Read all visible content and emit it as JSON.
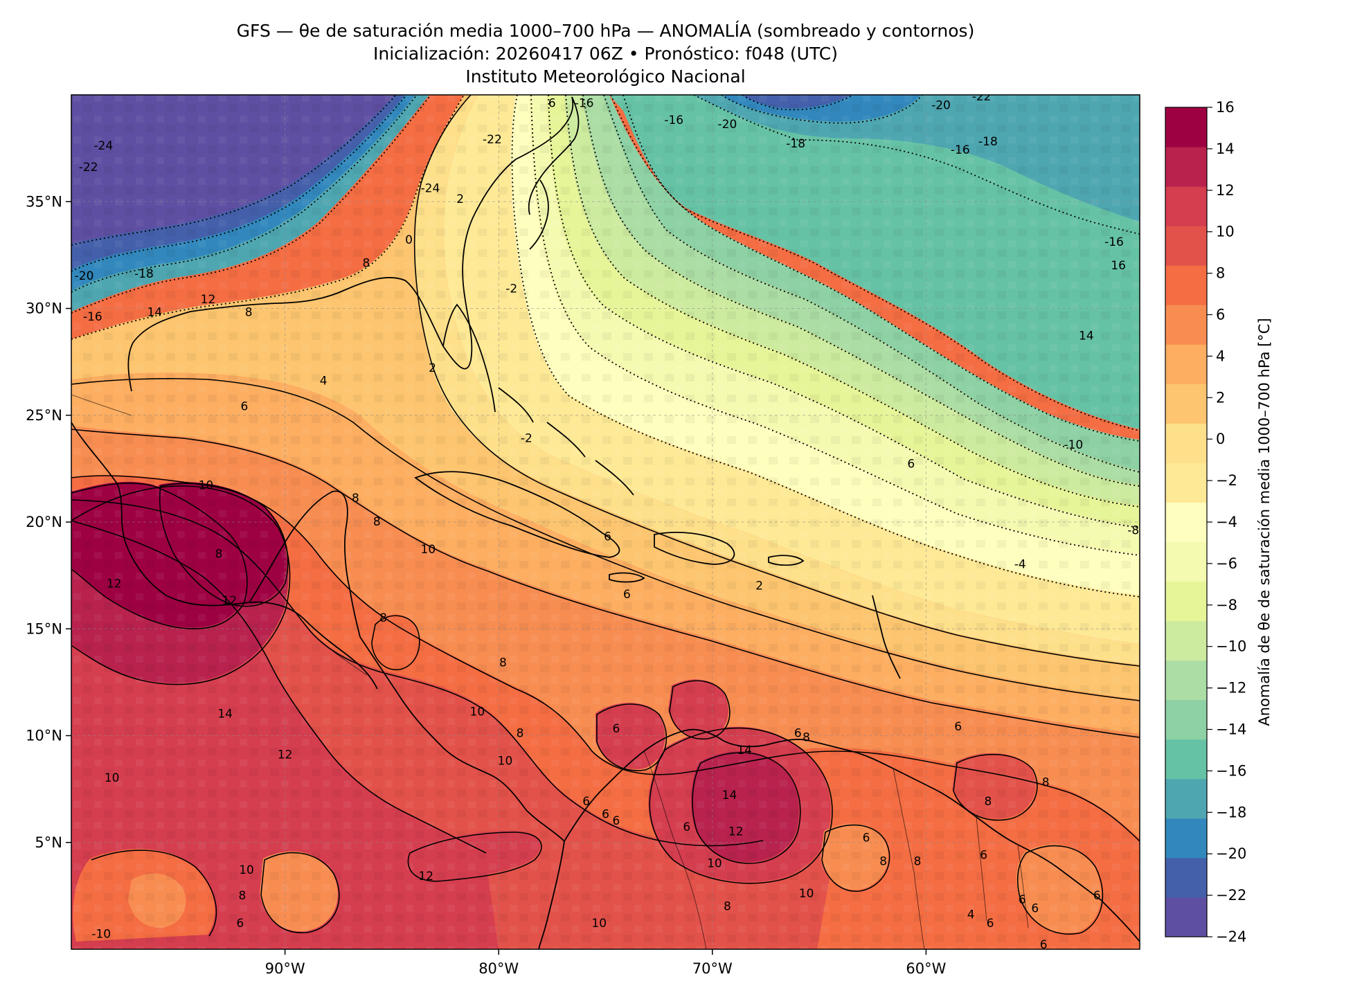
{
  "title": {
    "line1": "GFS — θe de saturación media 1000–700 hPa — ANOMALÍA (sombreado y contornos)",
    "line2": "Inicialización: 20260417 06Z   •   Pronóstico: f048 (UTC)",
    "line3": "Instituto Meteorológico Nacional"
  },
  "map": {
    "lon_range": [
      -100,
      -50
    ],
    "lat_range": [
      0,
      40
    ],
    "lon_ticks": [
      {
        "value": -90,
        "label": "90°W"
      },
      {
        "value": -80,
        "label": "80°W"
      },
      {
        "value": -70,
        "label": "70°W"
      },
      {
        "value": -60,
        "label": "60°W"
      }
    ],
    "lat_ticks": [
      {
        "value": 35,
        "label": "35°N"
      },
      {
        "value": 30,
        "label": "30°N"
      },
      {
        "value": 25,
        "label": "25°N"
      },
      {
        "value": 20,
        "label": "20°N"
      },
      {
        "value": 15,
        "label": "15°N"
      },
      {
        "value": 10,
        "label": "10°N"
      },
      {
        "value": 5,
        "label": "5°N"
      }
    ],
    "gridlines": "dashed",
    "field": "anomaly of mean saturation θe 1000–700 hPa",
    "contour_style": "solid for positive, dotted for negative",
    "contour_labels": [
      {
        "lon": -76,
        "lat": 39.6,
        "text": "-16"
      },
      {
        "lon": -80.3,
        "lat": 37.9,
        "text": "-22"
      },
      {
        "lon": -83.2,
        "lat": 35.6,
        "text": "-24"
      },
      {
        "lon": -98.5,
        "lat": 37.6,
        "text": "-24"
      },
      {
        "lon": -99.2,
        "lat": 36.6,
        "text": "-22"
      },
      {
        "lon": -99.4,
        "lat": 31.5,
        "text": "-20"
      },
      {
        "lon": -96.6,
        "lat": 31.6,
        "text": "-18"
      },
      {
        "lon": -99.0,
        "lat": 29.6,
        "text": "-16"
      },
      {
        "lon": -96.1,
        "lat": 29.8,
        "text": "14"
      },
      {
        "lon": -93.6,
        "lat": 30.4,
        "text": "12"
      },
      {
        "lon": -91.7,
        "lat": 29.8,
        "text": "8"
      },
      {
        "lon": -86.2,
        "lat": 32.1,
        "text": "8"
      },
      {
        "lon": -84.2,
        "lat": 33.2,
        "text": "0"
      },
      {
        "lon": -81.8,
        "lat": 35.1,
        "text": "2"
      },
      {
        "lon": -79.4,
        "lat": 30.9,
        "text": "-2"
      },
      {
        "lon": -83.1,
        "lat": 27.2,
        "text": "2"
      },
      {
        "lon": -88.2,
        "lat": 26.6,
        "text": "4"
      },
      {
        "lon": -91.9,
        "lat": 25.4,
        "text": "6"
      },
      {
        "lon": -93.7,
        "lat": 21.7,
        "text": "10"
      },
      {
        "lon": -86.7,
        "lat": 21.1,
        "text": "8"
      },
      {
        "lon": -85.7,
        "lat": 20.0,
        "text": "8"
      },
      {
        "lon": -83.3,
        "lat": 18.7,
        "text": "10"
      },
      {
        "lon": -93.1,
        "lat": 18.5,
        "text": "8"
      },
      {
        "lon": -98.0,
        "lat": 17.1,
        "text": "12"
      },
      {
        "lon": -92.6,
        "lat": 16.3,
        "text": "12"
      },
      {
        "lon": -85.4,
        "lat": 15.5,
        "text": "8"
      },
      {
        "lon": -79.8,
        "lat": 13.4,
        "text": "8"
      },
      {
        "lon": -92.8,
        "lat": 11.0,
        "text": "14"
      },
      {
        "lon": -90.0,
        "lat": 9.1,
        "text": "12"
      },
      {
        "lon": -81.0,
        "lat": 11.1,
        "text": "10"
      },
      {
        "lon": -98.1,
        "lat": 8.0,
        "text": "10"
      },
      {
        "lon": -79.7,
        "lat": 8.8,
        "text": "10"
      },
      {
        "lon": -79.0,
        "lat": 10.1,
        "text": "8"
      },
      {
        "lon": -91.8,
        "lat": 3.7,
        "text": "10"
      },
      {
        "lon": -92.0,
        "lat": 2.5,
        "text": "8"
      },
      {
        "lon": -83.4,
        "lat": 3.4,
        "text": "12"
      },
      {
        "lon": -92.1,
        "lat": 1.2,
        "text": "6"
      },
      {
        "lon": -98.6,
        "lat": 0.7,
        "text": "-10"
      },
      {
        "lon": -74.9,
        "lat": 19.3,
        "text": "6"
      },
      {
        "lon": -74.0,
        "lat": 16.6,
        "text": "6"
      },
      {
        "lon": -74.5,
        "lat": 10.3,
        "text": "6"
      },
      {
        "lon": -68.5,
        "lat": 9.3,
        "text": "14"
      },
      {
        "lon": -69.2,
        "lat": 7.2,
        "text": "14"
      },
      {
        "lon": -68.9,
        "lat": 5.5,
        "text": "12"
      },
      {
        "lon": -69.9,
        "lat": 4.0,
        "text": "10"
      },
      {
        "lon": -71.2,
        "lat": 5.7,
        "text": "6"
      },
      {
        "lon": -75.9,
        "lat": 6.9,
        "text": "6"
      },
      {
        "lon": -75.0,
        "lat": 6.3,
        "text": "6"
      },
      {
        "lon": -74.5,
        "lat": 6.0,
        "text": "6"
      },
      {
        "lon": -65.6,
        "lat": 2.6,
        "text": "10"
      },
      {
        "lon": -66.0,
        "lat": 10.1,
        "text": "6"
      },
      {
        "lon": -65.6,
        "lat": 9.9,
        "text": "8"
      },
      {
        "lon": -75.3,
        "lat": 1.2,
        "text": "10"
      },
      {
        "lon": -69.3,
        "lat": 2.0,
        "text": "8"
      },
      {
        "lon": -62.8,
        "lat": 5.2,
        "text": "6"
      },
      {
        "lon": -62.0,
        "lat": 4.1,
        "text": "8"
      },
      {
        "lon": -60.4,
        "lat": 4.1,
        "text": "8"
      },
      {
        "lon": -57.1,
        "lat": 6.9,
        "text": "8"
      },
      {
        "lon": -54.4,
        "lat": 7.8,
        "text": "8"
      },
      {
        "lon": -57.3,
        "lat": 4.4,
        "text": "6"
      },
      {
        "lon": -55.5,
        "lat": 2.3,
        "text": "6"
      },
      {
        "lon": -54.9,
        "lat": 1.9,
        "text": "6"
      },
      {
        "lon": -57.9,
        "lat": 1.6,
        "text": "4"
      },
      {
        "lon": -57.0,
        "lat": 1.2,
        "text": "6"
      },
      {
        "lon": -52.0,
        "lat": 2.5,
        "text": "6"
      },
      {
        "lon": -54.5,
        "lat": 0.2,
        "text": "6"
      },
      {
        "lon": -58.5,
        "lat": 10.4,
        "text": "6"
      },
      {
        "lon": -77.5,
        "lat": 39.6,
        "text": "6"
      },
      {
        "lon": -71.8,
        "lat": 38.8,
        "text": "-16"
      },
      {
        "lon": -69.3,
        "lat": 38.6,
        "text": "-20"
      },
      {
        "lon": -66.1,
        "lat": 37.7,
        "text": "-18"
      },
      {
        "lon": -59.3,
        "lat": 39.5,
        "text": "-20"
      },
      {
        "lon": -57.4,
        "lat": 39.9,
        "text": "-22"
      },
      {
        "lon": -57.1,
        "lat": 37.8,
        "text": "-18"
      },
      {
        "lon": -58.4,
        "lat": 37.4,
        "text": "-16"
      },
      {
        "lon": -51.2,
        "lat": 33.1,
        "text": "-16"
      },
      {
        "lon": -51.0,
        "lat": 32.0,
        "text": "16"
      },
      {
        "lon": -52.5,
        "lat": 28.7,
        "text": "14"
      },
      {
        "lon": -53.1,
        "lat": 23.6,
        "text": "-10"
      },
      {
        "lon": -60.7,
        "lat": 22.7,
        "text": "6"
      },
      {
        "lon": -50.3,
        "lat": 19.6,
        "text": "-8"
      },
      {
        "lon": -55.6,
        "lat": 18.0,
        "text": "-4"
      },
      {
        "lon": -67.8,
        "lat": 17.0,
        "text": "2"
      },
      {
        "lon": -78.7,
        "lat": 23.9,
        "text": "-2"
      }
    ]
  },
  "colorbar": {
    "label": "Anomalía de θe de saturación media 1000–700 hPa [°C]",
    "levels": [
      -24,
      -22,
      -20,
      -18,
      -16,
      -14,
      -12,
      -10,
      -8,
      -6,
      -4,
      -2,
      0,
      2,
      4,
      6,
      8,
      10,
      12,
      14,
      16
    ],
    "tick_labels": [
      "−24",
      "−22",
      "−20",
      "−18",
      "−16",
      "−14",
      "−12",
      "−10",
      "−8",
      "−6",
      "−4",
      "−2",
      "0",
      "2",
      "4",
      "6",
      "8",
      "10",
      "12",
      "14",
      "16"
    ],
    "colors": [
      "#5e4fa2",
      "#4560ab",
      "#3288bd",
      "#4ea6b1",
      "#66c2a5",
      "#8dd1a4",
      "#abdda4",
      "#cdeb9f",
      "#e6f598",
      "#f4fab0",
      "#fefebe",
      "#fee996",
      "#fee08b",
      "#fdc56f",
      "#fdae61",
      "#f88d52",
      "#f46d43",
      "#e2524a",
      "#d53e4f",
      "#b8224d",
      "#9e0142"
    ]
  }
}
